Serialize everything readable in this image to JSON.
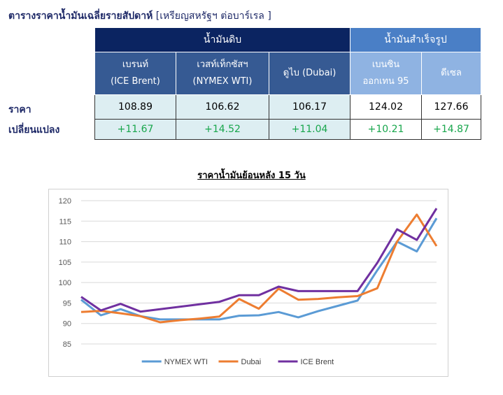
{
  "page_title": "ตารางราคาน้ำมันเฉลี่ยรายสัปดาห์",
  "page_unit": "[เหรียญสหรัฐฯ ต่อบาร์เรล ]",
  "table": {
    "group_crude": "น้ำมันดิบ",
    "group_refined": "น้ำมันสำเร็จรูป",
    "row_price_label": "ราคา",
    "row_change_label": "เปลี่ยนแปลง",
    "columns": [
      {
        "line1": "เบรนท์",
        "line2": "(ICE Brent)",
        "price": "108.89",
        "change": "+11.67"
      },
      {
        "line1": "เวสท์เท็กซัสฯ",
        "line2": "(NYMEX WTI)",
        "price": "106.62",
        "change": "+14.52"
      },
      {
        "line1": "ดูไบ (Dubai)",
        "line2": "",
        "price": "106.17",
        "change": "+11.04"
      },
      {
        "line1": "เบนซิน",
        "line2": "ออกเทน  95",
        "price": "124.02",
        "change": "+10.21"
      },
      {
        "line1": "ดีเซล",
        "line2": "",
        "price": "127.66",
        "change": "+14.87"
      }
    ]
  },
  "colors": {
    "header_crude": "#0b2461",
    "header_refined": "#4a7fc6",
    "change_text": "#18a64c"
  },
  "chart_data": {
    "type": "line",
    "title": "ราคาน้ำมันย้อนหลัง 15 วัน",
    "ylim": [
      85,
      120
    ],
    "yticks": [
      85,
      90,
      95,
      100,
      105,
      110,
      115,
      120
    ],
    "grid": true,
    "legend_position": "bottom",
    "x": [
      1,
      2,
      3,
      4,
      5,
      6,
      7,
      8,
      9,
      10,
      11,
      12,
      13,
      14,
      15,
      16,
      17,
      18,
      19
    ],
    "series": [
      {
        "name": "NYMEX WTI",
        "color": "#5b9bd5",
        "values": [
          95.8,
          92.0,
          93.5,
          91.8,
          91.0,
          91.0,
          91.0,
          91.0,
          91.9,
          92.0,
          92.8,
          91.5,
          93.0,
          94.3,
          95.6,
          103.0,
          110.0,
          107.6,
          115.7
        ]
      },
      {
        "name": "Dubai",
        "color": "#ed7d31",
        "values": [
          92.8,
          93.1,
          92.5,
          91.8,
          90.3,
          90.8,
          91.2,
          91.7,
          96.0,
          93.6,
          98.5,
          95.8,
          96.0,
          96.4,
          96.7,
          98.6,
          110.0,
          116.6,
          108.9
        ]
      },
      {
        "name": "ICE Brent",
        "color": "#7030a0",
        "values": [
          96.5,
          93.2,
          94.8,
          92.9,
          93.5,
          94.1,
          94.7,
          95.3,
          96.9,
          96.9,
          99.0,
          97.9,
          97.9,
          97.9,
          97.9,
          104.8,
          113.0,
          110.4,
          118.1
        ]
      }
    ]
  }
}
